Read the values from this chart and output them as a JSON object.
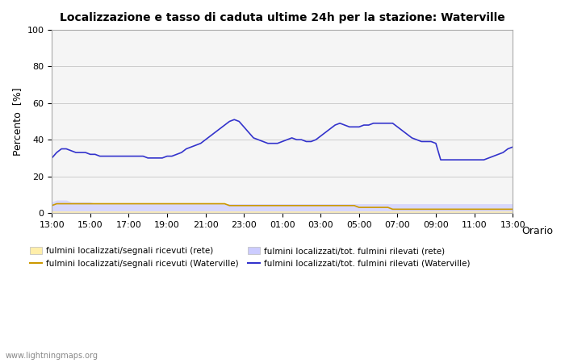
{
  "title": "Localizzazione e tasso di caduta ultime 24h per la stazione: Waterville",
  "ylabel": "Percento  [%]",
  "xlabel": "Orario",
  "xlim": [
    0,
    24
  ],
  "ylim": [
    0,
    100
  ],
  "yticks": [
    0,
    20,
    40,
    60,
    80,
    100
  ],
  "xtick_labels": [
    "13:00",
    "15:00",
    "17:00",
    "19:00",
    "21:00",
    "23:00",
    "01:00",
    "03:00",
    "05:00",
    "07:00",
    "09:00",
    "11:00",
    "13:00"
  ],
  "xtick_positions": [
    0,
    2,
    4,
    6,
    8,
    10,
    12,
    14,
    16,
    18,
    20,
    22,
    24
  ],
  "bg_color": "#ffffff",
  "plot_bg_color": "#f5f5f5",
  "grid_color": "#cccccc",
  "watermark": "www.lightningmaps.org",
  "line_waterville_color": "#3333cc",
  "line_rete_color": "#cc9900",
  "fill_waterville_color": "#ccccff",
  "fill_rete_color": "#ffeeaa",
  "waterville_line": [
    30,
    33,
    35,
    35,
    34,
    33,
    33,
    33,
    32,
    32,
    31,
    31,
    31,
    31,
    31,
    31,
    31,
    31,
    31,
    31,
    30,
    30,
    30,
    30,
    31,
    31,
    32,
    33,
    35,
    36,
    37,
    38,
    40,
    42,
    44,
    46,
    48,
    50,
    51,
    50,
    47,
    44,
    41,
    40,
    39,
    38,
    38,
    38,
    39,
    40,
    41,
    40,
    40,
    39,
    39,
    40,
    42,
    44,
    46,
    48,
    49,
    48,
    47,
    47,
    47,
    48,
    48,
    49,
    49,
    49,
    49,
    49,
    47,
    45,
    43,
    41,
    40,
    39,
    39,
    39,
    38,
    29,
    29,
    29,
    29,
    29,
    29,
    29,
    29,
    29,
    29,
    30,
    31,
    32,
    33,
    35,
    36
  ],
  "rete_line": [
    4,
    5,
    5,
    5,
    5,
    5,
    5,
    5,
    5,
    5,
    5,
    5,
    5,
    5,
    5,
    5,
    5,
    5,
    5,
    5,
    5,
    5,
    5,
    5,
    5,
    5,
    5,
    5,
    5,
    5,
    5,
    5,
    5,
    5,
    5,
    5,
    5,
    4,
    4,
    4,
    4,
    4,
    4,
    4,
    4,
    4,
    4,
    4,
    4,
    4,
    4,
    4,
    4,
    4,
    4,
    4,
    4,
    4,
    4,
    4,
    4,
    4,
    4,
    4,
    3,
    3,
    3,
    3,
    3,
    3,
    3,
    2,
    2,
    2,
    2,
    2,
    2,
    2,
    2,
    2,
    2,
    2,
    2,
    2,
    2,
    2,
    2,
    2,
    2,
    2,
    2,
    2,
    2,
    2,
    2,
    2,
    2
  ],
  "waterville_area": [
    6,
    7,
    7,
    7,
    6,
    6,
    6,
    6,
    6,
    5,
    5,
    5,
    5,
    5,
    5,
    5,
    5,
    5,
    5,
    5,
    5,
    5,
    5,
    5,
    5,
    5,
    5,
    5,
    5,
    5,
    5,
    5,
    5,
    5,
    5,
    5,
    5,
    5,
    5,
    5,
    5,
    5,
    5,
    5,
    5,
    5,
    5,
    5,
    5,
    5,
    5,
    5,
    5,
    5,
    5,
    5,
    5,
    5,
    5,
    5,
    5,
    5,
    5,
    5,
    5,
    5,
    5,
    5,
    5,
    5,
    5,
    5,
    5,
    5,
    5,
    5,
    5,
    5,
    5,
    5,
    5,
    5,
    5,
    5,
    5,
    5,
    5,
    5,
    5,
    5,
    5,
    5,
    5,
    5,
    5,
    5,
    5
  ],
  "rete_area": [
    1,
    1,
    1,
    1,
    1,
    1,
    1,
    1,
    1,
    1,
    1,
    1,
    1,
    1,
    1,
    1,
    1,
    1,
    1,
    1,
    1,
    1,
    1,
    1,
    1,
    1,
    1,
    1,
    1,
    1,
    1,
    1,
    1,
    1,
    1,
    1,
    1,
    1,
    1,
    1,
    1,
    1,
    1,
    1,
    1,
    1,
    1,
    1,
    1,
    1,
    1,
    1,
    1,
    1,
    1,
    1,
    1,
    1,
    1,
    1,
    1,
    1,
    1,
    1,
    1,
    1,
    1,
    1,
    1,
    1,
    1,
    1,
    1,
    1,
    1,
    1,
    1,
    1,
    1,
    1,
    1,
    1,
    1,
    1,
    1,
    1,
    1,
    1,
    1,
    1,
    1,
    1,
    1,
    1,
    1,
    1,
    1
  ],
  "legend_items": [
    {
      "label": "fulmini localizzati/segnali ricevuti (rete)",
      "type": "fill",
      "color": "#ffeeaa"
    },
    {
      "label": "fulmini localizzati/segnali ricevuti (Waterville)",
      "type": "line",
      "color": "#cc9900"
    },
    {
      "label": "fulmini localizzati/tot. fulmini rilevati (rete)",
      "type": "fill",
      "color": "#ccccff"
    },
    {
      "label": "fulmini localizzati/tot. fulmini rilevati (Waterville)",
      "type": "line",
      "color": "#3333cc"
    }
  ]
}
